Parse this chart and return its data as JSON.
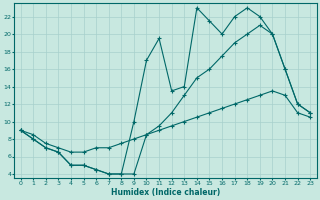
{
  "xlabel": "Humidex (Indice chaleur)",
  "bg_color": "#c8e8e0",
  "line_color": "#006868",
  "grid_color": "#a8d0cc",
  "xlim": [
    -0.5,
    23.5
  ],
  "ylim": [
    3.5,
    23.5
  ],
  "yticks": [
    4,
    6,
    8,
    10,
    12,
    14,
    16,
    18,
    20,
    22
  ],
  "xticks": [
    0,
    1,
    2,
    3,
    4,
    5,
    6,
    7,
    8,
    9,
    10,
    11,
    12,
    13,
    14,
    15,
    16,
    17,
    18,
    19,
    20,
    21,
    22,
    23
  ],
  "line1_x": [
    0,
    1,
    2,
    3,
    4,
    5,
    6,
    7,
    8,
    9,
    10,
    11,
    12,
    13,
    14,
    15,
    16,
    17,
    18,
    19,
    20,
    21,
    22,
    23
  ],
  "line1_y": [
    9,
    8,
    7,
    6.5,
    5,
    5,
    4.5,
    4,
    4,
    10,
    17,
    19.5,
    13.5,
    14,
    23,
    21.5,
    20,
    22,
    23,
    22,
    20,
    16,
    12,
    11
  ],
  "line2_x": [
    0,
    1,
    2,
    3,
    4,
    5,
    6,
    7,
    8,
    9,
    10,
    11,
    12,
    13,
    14,
    15,
    16,
    17,
    18,
    19,
    20,
    21,
    22,
    23
  ],
  "line2_y": [
    9,
    8,
    7,
    6.5,
    5,
    5,
    4.5,
    4,
    4,
    4,
    8.5,
    9.5,
    11,
    13,
    15,
    16,
    17.5,
    19,
    20,
    21,
    20,
    16,
    12,
    11
  ],
  "line3_x": [
    0,
    1,
    2,
    3,
    4,
    5,
    6,
    7,
    8,
    9,
    10,
    11,
    12,
    13,
    14,
    15,
    16,
    17,
    18,
    19,
    20,
    21,
    22,
    23
  ],
  "line3_y": [
    9,
    8.5,
    7.5,
    7,
    6.5,
    6.5,
    7,
    7,
    7.5,
    8,
    8.5,
    9,
    9.5,
    10,
    10.5,
    11,
    11.5,
    12,
    12.5,
    13,
    13.5,
    13,
    11,
    10.5
  ]
}
